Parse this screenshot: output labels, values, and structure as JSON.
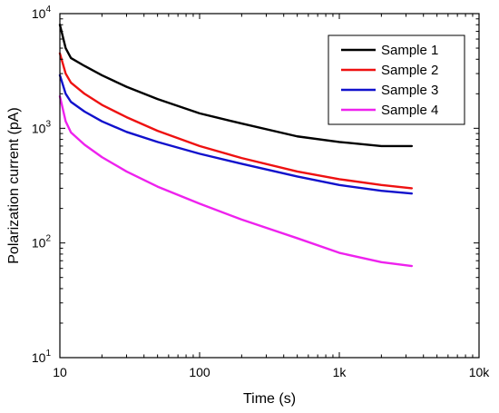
{
  "chart_data": {
    "type": "line",
    "title": "",
    "xlabel": "Time (s)",
    "ylabel": "Polarization current (pA)",
    "x_scale": "log",
    "y_scale": "log",
    "xlim": [
      10,
      10000
    ],
    "ylim": [
      10,
      10000
    ],
    "x_ticks": [
      {
        "value": 10,
        "label": "10"
      },
      {
        "value": 100,
        "label": "100"
      },
      {
        "value": 1000,
        "label": "1k"
      },
      {
        "value": 10000,
        "label": "10k"
      }
    ],
    "y_ticks": [
      {
        "value": 10,
        "base": "10",
        "exp": "1"
      },
      {
        "value": 100,
        "base": "10",
        "exp": "2"
      },
      {
        "value": 1000,
        "base": "10",
        "exp": "3"
      },
      {
        "value": 10000,
        "base": "10",
        "exp": "4"
      }
    ],
    "grid": false,
    "legend_position": "top-right",
    "x": [
      10,
      11,
      12,
      15,
      20,
      30,
      50,
      100,
      200,
      500,
      1000,
      2000,
      3300
    ],
    "series": [
      {
        "name": "Sample 1",
        "color": "#000000",
        "values": [
          8000,
          5000,
          4100,
          3500,
          2900,
          2300,
          1800,
          1350,
          1100,
          850,
          760,
          700,
          700
        ]
      },
      {
        "name": "Sample 2",
        "color": "#ee1111",
        "values": [
          4500,
          3000,
          2500,
          2000,
          1600,
          1250,
          950,
          700,
          550,
          420,
          360,
          320,
          300
        ]
      },
      {
        "name": "Sample 3",
        "color": "#1111cc",
        "values": [
          2900,
          2000,
          1700,
          1400,
          1150,
          930,
          760,
          600,
          490,
          380,
          320,
          285,
          270
        ]
      },
      {
        "name": "Sample 4",
        "color": "#ee22ee",
        "values": [
          1900,
          1150,
          920,
          720,
          560,
          420,
          310,
          220,
          160,
          110,
          82,
          68,
          63
        ]
      }
    ]
  }
}
